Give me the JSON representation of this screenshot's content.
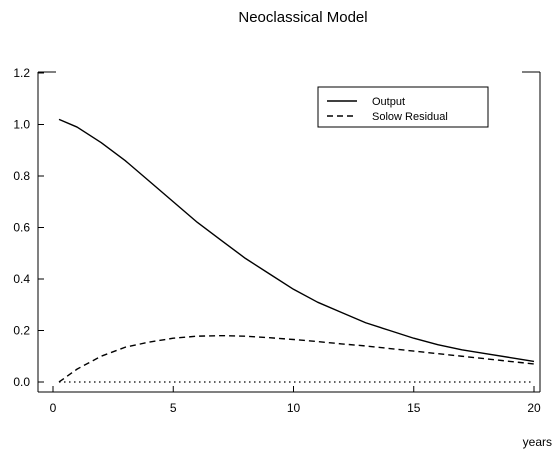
{
  "chart_data": {
    "type": "line",
    "title": "Neoclassical Model",
    "xlabel": "years",
    "ylabel": "",
    "xlim": [
      0,
      20
    ],
    "ylim": [
      0,
      1.2
    ],
    "x_ticks": [
      0,
      5,
      10,
      15,
      20
    ],
    "y_ticks": [
      0.0,
      0.2,
      0.4,
      0.6,
      0.8,
      1.0,
      1.2
    ],
    "x_tick_labels": [
      "0",
      "5",
      "10",
      "15",
      "20"
    ],
    "y_tick_labels": [
      "0.0",
      "0.2",
      "0.4",
      "0.6",
      "0.8",
      "1.0",
      "1.2"
    ],
    "grid": false,
    "legend_position": "top-right",
    "x": [
      0.25,
      1,
      2,
      3,
      4,
      5,
      6,
      7,
      8,
      9,
      10,
      11,
      12,
      13,
      14,
      15,
      16,
      17,
      18,
      19,
      20
    ],
    "series": [
      {
        "name": "Output",
        "style": "solid",
        "values": [
          1.02,
          0.99,
          0.93,
          0.86,
          0.78,
          0.7,
          0.62,
          0.55,
          0.48,
          0.42,
          0.36,
          0.31,
          0.27,
          0.23,
          0.2,
          0.17,
          0.145,
          0.125,
          0.11,
          0.095,
          0.08
        ]
      },
      {
        "name": "Solow Residual",
        "style": "dashed",
        "values": [
          0.0,
          0.05,
          0.1,
          0.135,
          0.155,
          0.17,
          0.178,
          0.18,
          0.178,
          0.172,
          0.165,
          0.157,
          0.148,
          0.14,
          0.13,
          0.12,
          0.11,
          0.1,
          0.09,
          0.08,
          0.07
        ]
      },
      {
        "name": "",
        "style": "dotted",
        "values": [
          0,
          0,
          0,
          0,
          0,
          0,
          0,
          0,
          0,
          0,
          0,
          0,
          0,
          0,
          0,
          0,
          0,
          0,
          0,
          0,
          0
        ]
      }
    ]
  }
}
